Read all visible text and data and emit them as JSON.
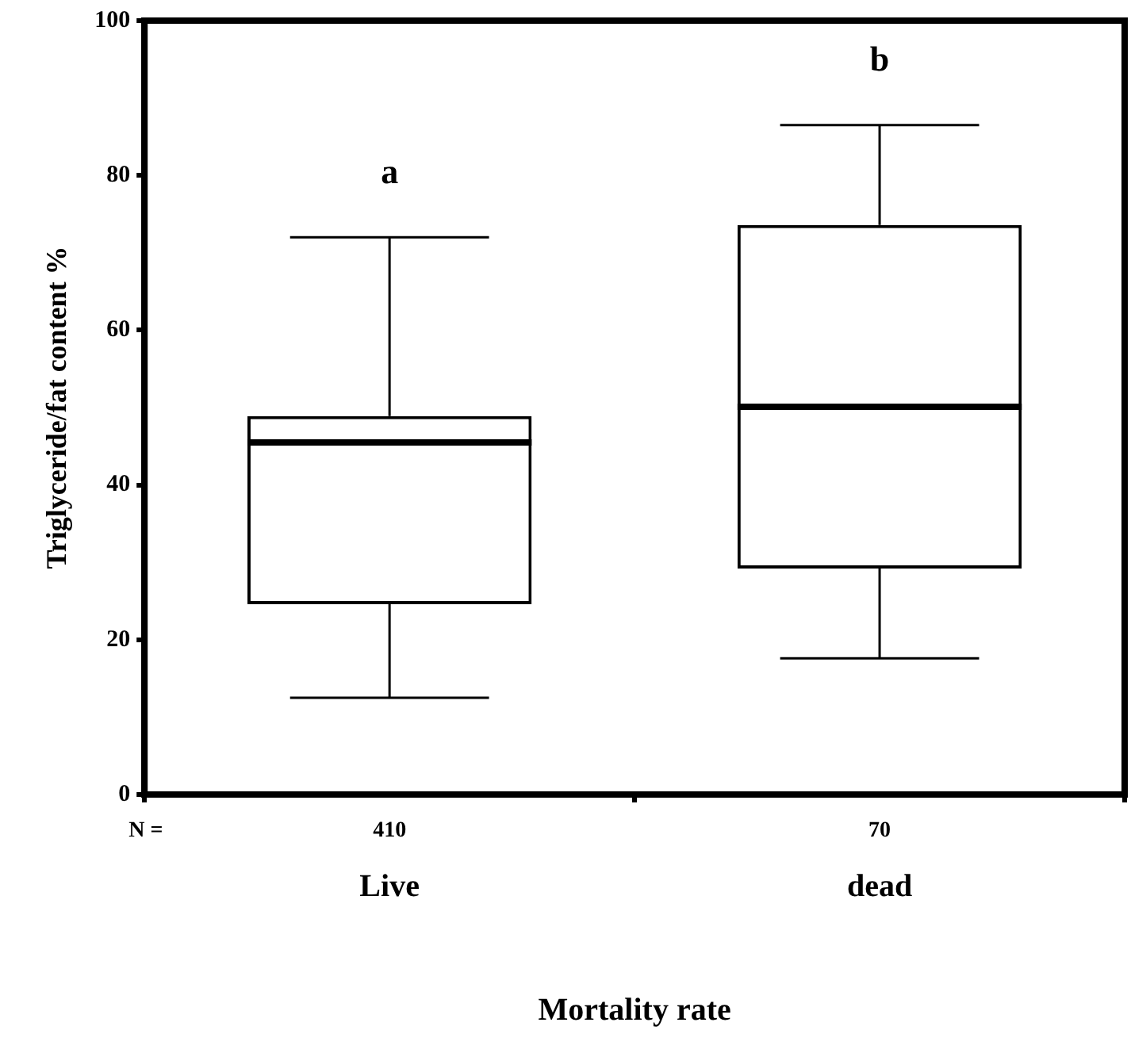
{
  "chart_data": {
    "type": "box",
    "ylabel": "Triglyceride/fat content %",
    "xlabel": "Mortality rate",
    "categories": [
      "Live",
      "dead"
    ],
    "boxes": [
      {
        "low": 12.5,
        "q1": 24.6,
        "median": 45.5,
        "q3": 48.9,
        "high": 72.0
      },
      {
        "low": 17.6,
        "q1": 29.2,
        "median": 50.1,
        "q3": 73.6,
        "high": 86.5
      }
    ],
    "color": "#000000",
    "ylim": [
      0,
      100
    ],
    "yticks": [
      0,
      20,
      40,
      60,
      80,
      100
    ],
    "grid": false,
    "legend": false,
    "annotations": [
      "N =",
      "410",
      "70",
      "a",
      "b"
    ]
  }
}
